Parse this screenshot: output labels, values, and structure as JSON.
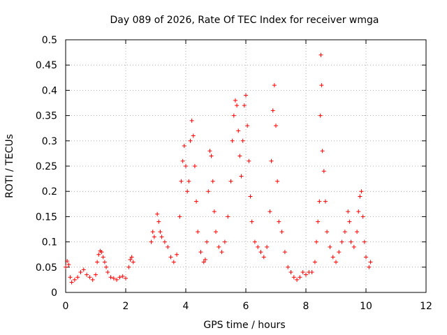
{
  "chart_data": {
    "type": "scatter",
    "title": "Day 089 of 2026, Rate Of TEC Index for receiver wmga",
    "xlabel": "GPS time / hours",
    "ylabel": "ROTI / TECUs",
    "xlim": [
      0,
      12
    ],
    "ylim": [
      0,
      0.5
    ],
    "xticks": [
      "0",
      "2",
      "4",
      "6",
      "8",
      "10",
      "12"
    ],
    "yticks": [
      "0",
      "0.05",
      "0.1",
      "0.15",
      "0.2",
      "0.25",
      "0.3",
      "0.35",
      "0.4",
      "0.45",
      "0.5"
    ],
    "grid": true,
    "marker": "+",
    "color": "#ff0000",
    "series": [
      {
        "points": [
          [
            0.0,
            0.05
          ],
          [
            0.05,
            0.062
          ],
          [
            0.1,
            0.055
          ],
          [
            0.15,
            0.03
          ],
          [
            0.2,
            0.02
          ],
          [
            0.3,
            0.025
          ],
          [
            0.4,
            0.03
          ],
          [
            0.5,
            0.04
          ],
          [
            0.6,
            0.045
          ],
          [
            0.7,
            0.035
          ],
          [
            0.8,
            0.03
          ],
          [
            0.9,
            0.025
          ],
          [
            1.0,
            0.035
          ],
          [
            1.05,
            0.06
          ],
          [
            1.1,
            0.075
          ],
          [
            1.15,
            0.082
          ],
          [
            1.2,
            0.08
          ],
          [
            1.25,
            0.07
          ],
          [
            1.3,
            0.06
          ],
          [
            1.35,
            0.05
          ],
          [
            1.4,
            0.04
          ],
          [
            1.5,
            0.03
          ],
          [
            1.6,
            0.028
          ],
          [
            1.7,
            0.025
          ],
          [
            1.8,
            0.03
          ],
          [
            1.9,
            0.032
          ],
          [
            2.0,
            0.028
          ],
          [
            2.1,
            0.05
          ],
          [
            2.15,
            0.065
          ],
          [
            2.2,
            0.07
          ],
          [
            2.25,
            0.06
          ],
          [
            2.85,
            0.1
          ],
          [
            2.9,
            0.12
          ],
          [
            2.95,
            0.11
          ],
          [
            3.05,
            0.155
          ],
          [
            3.1,
            0.14
          ],
          [
            3.15,
            0.12
          ],
          [
            3.2,
            0.11
          ],
          [
            3.3,
            0.1
          ],
          [
            3.4,
            0.09
          ],
          [
            3.5,
            0.07
          ],
          [
            3.6,
            0.06
          ],
          [
            3.7,
            0.075
          ],
          [
            3.8,
            0.15
          ],
          [
            3.85,
            0.22
          ],
          [
            3.9,
            0.26
          ],
          [
            3.95,
            0.29
          ],
          [
            4.0,
            0.25
          ],
          [
            4.05,
            0.2
          ],
          [
            4.1,
            0.22
          ],
          [
            4.15,
            0.3
          ],
          [
            4.2,
            0.34
          ],
          [
            4.25,
            0.31
          ],
          [
            4.3,
            0.25
          ],
          [
            4.35,
            0.18
          ],
          [
            4.4,
            0.12
          ],
          [
            4.5,
            0.08
          ],
          [
            4.6,
            0.06
          ],
          [
            4.65,
            0.065
          ],
          [
            4.7,
            0.1
          ],
          [
            4.75,
            0.2
          ],
          [
            4.8,
            0.28
          ],
          [
            4.85,
            0.27
          ],
          [
            4.9,
            0.22
          ],
          [
            4.95,
            0.16
          ],
          [
            5.0,
            0.12
          ],
          [
            5.1,
            0.09
          ],
          [
            5.2,
            0.08
          ],
          [
            5.3,
            0.1
          ],
          [
            5.4,
            0.15
          ],
          [
            5.5,
            0.22
          ],
          [
            5.55,
            0.3
          ],
          [
            5.6,
            0.35
          ],
          [
            5.65,
            0.38
          ],
          [
            5.7,
            0.37
          ],
          [
            5.75,
            0.32
          ],
          [
            5.8,
            0.27
          ],
          [
            5.85,
            0.23
          ],
          [
            5.9,
            0.3
          ],
          [
            5.95,
            0.37
          ],
          [
            6.0,
            0.39
          ],
          [
            6.05,
            0.33
          ],
          [
            6.1,
            0.26
          ],
          [
            6.15,
            0.19
          ],
          [
            6.2,
            0.14
          ],
          [
            6.3,
            0.1
          ],
          [
            6.4,
            0.09
          ],
          [
            6.5,
            0.08
          ],
          [
            6.6,
            0.07
          ],
          [
            6.7,
            0.09
          ],
          [
            6.8,
            0.16
          ],
          [
            6.85,
            0.26
          ],
          [
            6.9,
            0.36
          ],
          [
            6.95,
            0.41
          ],
          [
            7.0,
            0.33
          ],
          [
            7.05,
            0.22
          ],
          [
            7.1,
            0.14
          ],
          [
            7.2,
            0.12
          ],
          [
            7.3,
            0.08
          ],
          [
            7.4,
            0.05
          ],
          [
            7.5,
            0.04
          ],
          [
            7.6,
            0.03
          ],
          [
            7.7,
            0.025
          ],
          [
            7.8,
            0.03
          ],
          [
            7.9,
            0.04
          ],
          [
            8.0,
            0.035
          ],
          [
            8.1,
            0.04
          ],
          [
            8.2,
            0.04
          ],
          [
            8.3,
            0.06
          ],
          [
            8.35,
            0.1
          ],
          [
            8.4,
            0.14
          ],
          [
            8.45,
            0.18
          ],
          [
            8.48,
            0.35
          ],
          [
            8.5,
            0.47
          ],
          [
            8.52,
            0.41
          ],
          [
            8.55,
            0.28
          ],
          [
            8.6,
            0.24
          ],
          [
            8.65,
            0.18
          ],
          [
            8.7,
            0.12
          ],
          [
            8.8,
            0.09
          ],
          [
            8.9,
            0.07
          ],
          [
            9.0,
            0.06
          ],
          [
            9.1,
            0.08
          ],
          [
            9.2,
            0.1
          ],
          [
            9.3,
            0.12
          ],
          [
            9.4,
            0.16
          ],
          [
            9.45,
            0.14
          ],
          [
            9.5,
            0.1
          ],
          [
            9.6,
            0.09
          ],
          [
            9.7,
            0.12
          ],
          [
            9.75,
            0.16
          ],
          [
            9.8,
            0.19
          ],
          [
            9.85,
            0.2
          ],
          [
            9.9,
            0.15
          ],
          [
            9.95,
            0.1
          ],
          [
            10.0,
            0.07
          ],
          [
            10.1,
            0.05
          ],
          [
            10.15,
            0.06
          ]
        ]
      }
    ]
  }
}
